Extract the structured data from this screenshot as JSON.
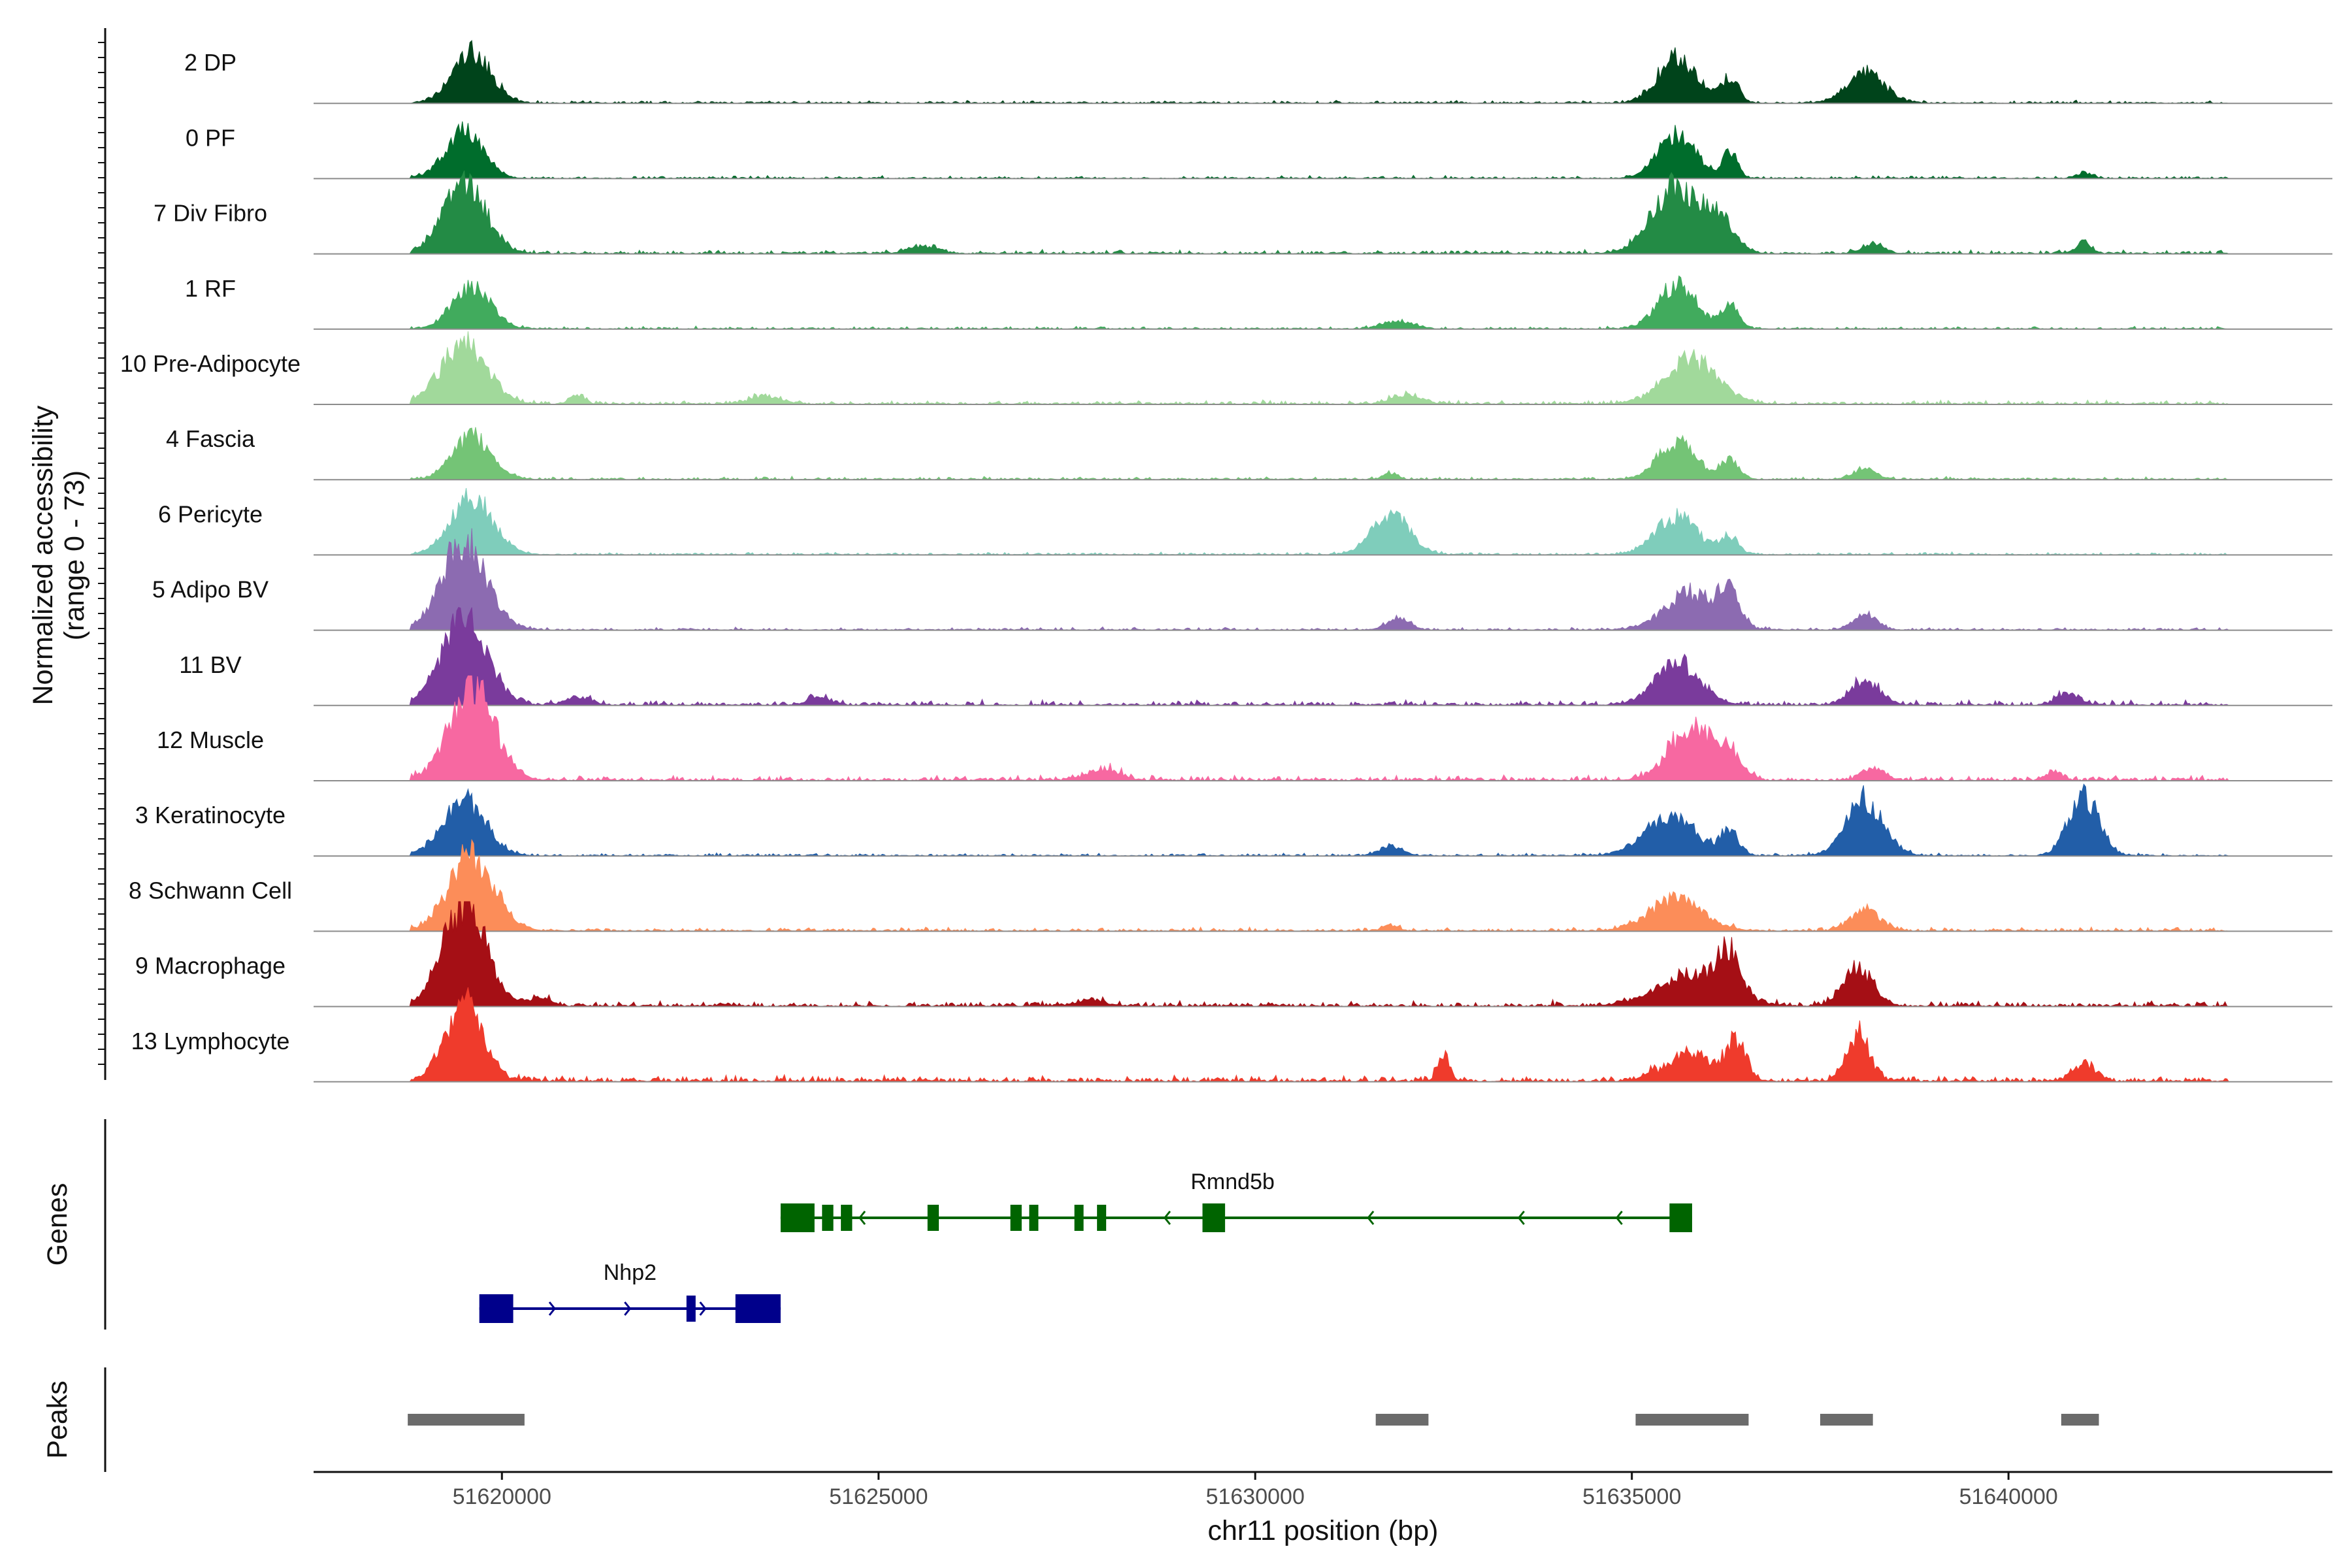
{
  "chart_data": {
    "type": "area",
    "chromosome": "chr11",
    "xlabel": "chr11 position (bp)",
    "xlim": [
      51617500,
      51644300
    ],
    "x_ticks": [
      51620000,
      51625000,
      51630000,
      51635000,
      51640000
    ],
    "x_tick_labels": [
      "51620000",
      "51625000",
      "51630000",
      "51635000",
      "51640000"
    ],
    "ylabel_line1": "Normalized accessibility",
    "ylabel_line2": "(range 0 - 73)",
    "y_range": [
      0,
      73
    ],
    "genes_label": "Genes",
    "peaks_label": "Peaks",
    "tracks": [
      {
        "name": "2 DP",
        "color": "#00441b",
        "peaks": [
          [
            51619600,
            35,
            250
          ],
          [
            51635600,
            32,
            250
          ],
          [
            51636300,
            16,
            120
          ],
          [
            51638100,
            20,
            250
          ]
        ],
        "noise": 2,
        "span": [
          51618800,
          51642900
        ]
      },
      {
        "name": "0 PF",
        "color": "#006d2c",
        "peaks": [
          [
            51619500,
            32,
            250
          ],
          [
            51635600,
            30,
            250
          ],
          [
            51636300,
            18,
            100
          ],
          [
            51641000,
            4,
            100
          ]
        ],
        "noise": 2,
        "span": [
          51618800,
          51642900
        ]
      },
      {
        "name": "7 Div Fibro",
        "color": "#238b45",
        "peaks": [
          [
            51619500,
            48,
            280
          ],
          [
            51635600,
            46,
            320
          ],
          [
            51636200,
            20,
            180
          ],
          [
            51625600,
            5,
            200
          ],
          [
            51638200,
            6,
            150
          ],
          [
            51641000,
            8,
            100
          ]
        ],
        "noise": 3,
        "span": [
          51618800,
          51642900
        ]
      },
      {
        "name": "1 RF",
        "color": "#41ab5d",
        "peaks": [
          [
            51619600,
            28,
            250
          ],
          [
            51635600,
            30,
            250
          ],
          [
            51636300,
            18,
            120
          ],
          [
            51631900,
            5,
            200
          ]
        ],
        "noise": 2,
        "span": [
          51618800,
          51642900
        ]
      },
      {
        "name": "10 Pre-Adipocyte",
        "color": "#a1d99b",
        "peaks": [
          [
            51619500,
            42,
            300
          ],
          [
            51635800,
            30,
            350
          ],
          [
            51621000,
            6,
            100
          ],
          [
            51623500,
            6,
            200
          ],
          [
            51632000,
            6,
            200
          ]
        ],
        "noise": 3,
        "span": [
          51618800,
          51642900
        ]
      },
      {
        "name": "4 Fascia",
        "color": "#74c476",
        "peaks": [
          [
            51619600,
            30,
            250
          ],
          [
            51635600,
            26,
            250
          ],
          [
            51636300,
            14,
            120
          ],
          [
            51638100,
            8,
            150
          ],
          [
            51631800,
            4,
            100
          ]
        ],
        "noise": 2,
        "span": [
          51618800,
          51642900
        ]
      },
      {
        "name": "6 Pericyte",
        "color": "#7fcdbb",
        "peaks": [
          [
            51619600,
            40,
            280
          ],
          [
            51631800,
            28,
            250
          ],
          [
            51635600,
            26,
            280
          ],
          [
            51636300,
            12,
            120
          ]
        ],
        "noise": 2,
        "span": [
          51618800,
          51642900
        ]
      },
      {
        "name": "5 Adipo BV",
        "color": "#8c6bb1",
        "peaks": [
          [
            51619500,
            60,
            300
          ],
          [
            51635800,
            26,
            350
          ],
          [
            51636300,
            24,
            120
          ],
          [
            51638100,
            12,
            150
          ],
          [
            51631900,
            8,
            150
          ]
        ],
        "noise": 2,
        "span": [
          51618800,
          51642900
        ]
      },
      {
        "name": "11 BV",
        "color": "#7a3b9c",
        "peaks": [
          [
            51619500,
            58,
            300
          ],
          [
            51635600,
            28,
            300
          ],
          [
            51638100,
            16,
            200
          ],
          [
            51640800,
            8,
            150
          ],
          [
            51624200,
            6,
            150
          ],
          [
            51621000,
            6,
            150
          ]
        ],
        "noise": 4,
        "span": [
          51618800,
          51642900
        ]
      },
      {
        "name": "12 Muscle",
        "color": "#f768a1",
        "peaks": [
          [
            51619600,
            64,
            300
          ],
          [
            51635800,
            36,
            300
          ],
          [
            51636300,
            16,
            150
          ],
          [
            51628000,
            8,
            200
          ],
          [
            51638200,
            8,
            150
          ],
          [
            51640600,
            6,
            100
          ]
        ],
        "noise": 4,
        "span": [
          51618800,
          51642900
        ]
      },
      {
        "name": "3 Keratinocyte",
        "color": "#225ea8",
        "peaks": [
          [
            51619500,
            38,
            280
          ],
          [
            51635500,
            26,
            350
          ],
          [
            51636300,
            16,
            120
          ],
          [
            51638100,
            38,
            250
          ],
          [
            51641000,
            40,
            200
          ],
          [
            51631800,
            6,
            150
          ]
        ],
        "noise": 2,
        "span": [
          51618800,
          51642900
        ]
      },
      {
        "name": "8 Schwann Cell",
        "color": "#fc8d59",
        "peaks": [
          [
            51619600,
            52,
            300
          ],
          [
            51635600,
            22,
            350
          ],
          [
            51638100,
            14,
            200
          ],
          [
            51631800,
            4,
            100
          ]
        ],
        "noise": 3,
        "span": [
          51618800,
          51642900
        ]
      },
      {
        "name": "9 Macrophage",
        "color": "#a50f15",
        "peaks": [
          [
            51619500,
            70,
            280
          ],
          [
            51635800,
            22,
            450
          ],
          [
            51636300,
            28,
            150
          ],
          [
            51638000,
            26,
            200
          ],
          [
            51620500,
            6,
            150
          ],
          [
            51627800,
            4,
            200
          ]
        ],
        "noise": 4,
        "span": [
          51618800,
          51642900
        ]
      },
      {
        "name": "13 Lymphocyte",
        "color": "#ef3b2c",
        "peaks": [
          [
            51619500,
            52,
            250
          ],
          [
            51635800,
            18,
            350
          ],
          [
            51636400,
            24,
            120
          ],
          [
            51638000,
            32,
            150
          ],
          [
            51632500,
            18,
            80
          ],
          [
            51641000,
            12,
            150
          ]
        ],
        "noise": 5,
        "span": [
          51618800,
          51642900
        ]
      }
    ],
    "genes": [
      {
        "name": "Rmnd5b",
        "strand": "-",
        "color": "#006400",
        "start": 51623700,
        "end": 51635800,
        "label_x": 51629700,
        "exons": [
          [
            51623700,
            51624150,
            "wide"
          ],
          [
            51624250,
            51624400,
            "mid"
          ],
          [
            51624500,
            51624650,
            "mid"
          ],
          [
            51625650,
            51625800,
            "mid"
          ],
          [
            51626750,
            51626900,
            "mid"
          ],
          [
            51627000,
            51627100,
            "mid"
          ],
          [
            51627600,
            51627700,
            "mid"
          ],
          [
            51627900,
            51628000,
            "mid"
          ],
          [
            51629300,
            51629600,
            "wide"
          ],
          [
            51635500,
            51635800,
            "wide"
          ]
        ],
        "arrows": [
          51624750,
          51627000,
          51628800,
          51631500,
          51633500,
          51634800
        ]
      },
      {
        "name": "Nhp2",
        "strand": "+",
        "color": "#00008b",
        "start": 51619700,
        "end": 51623700,
        "label_x": 51621700,
        "exons": [
          [
            51619700,
            51620150,
            "wide"
          ],
          [
            51622450,
            51622550,
            "mid"
          ],
          [
            51623100,
            51623700,
            "wide"
          ]
        ],
        "arrows": [
          51619800,
          51620700,
          51621700,
          51622700
        ]
      }
    ],
    "peaks": [
      [
        51618750,
        51620300
      ],
      [
        51631600,
        51632300
      ],
      [
        51635050,
        51636550
      ],
      [
        51637500,
        51638200
      ],
      [
        51640700,
        51641200
      ]
    ]
  }
}
